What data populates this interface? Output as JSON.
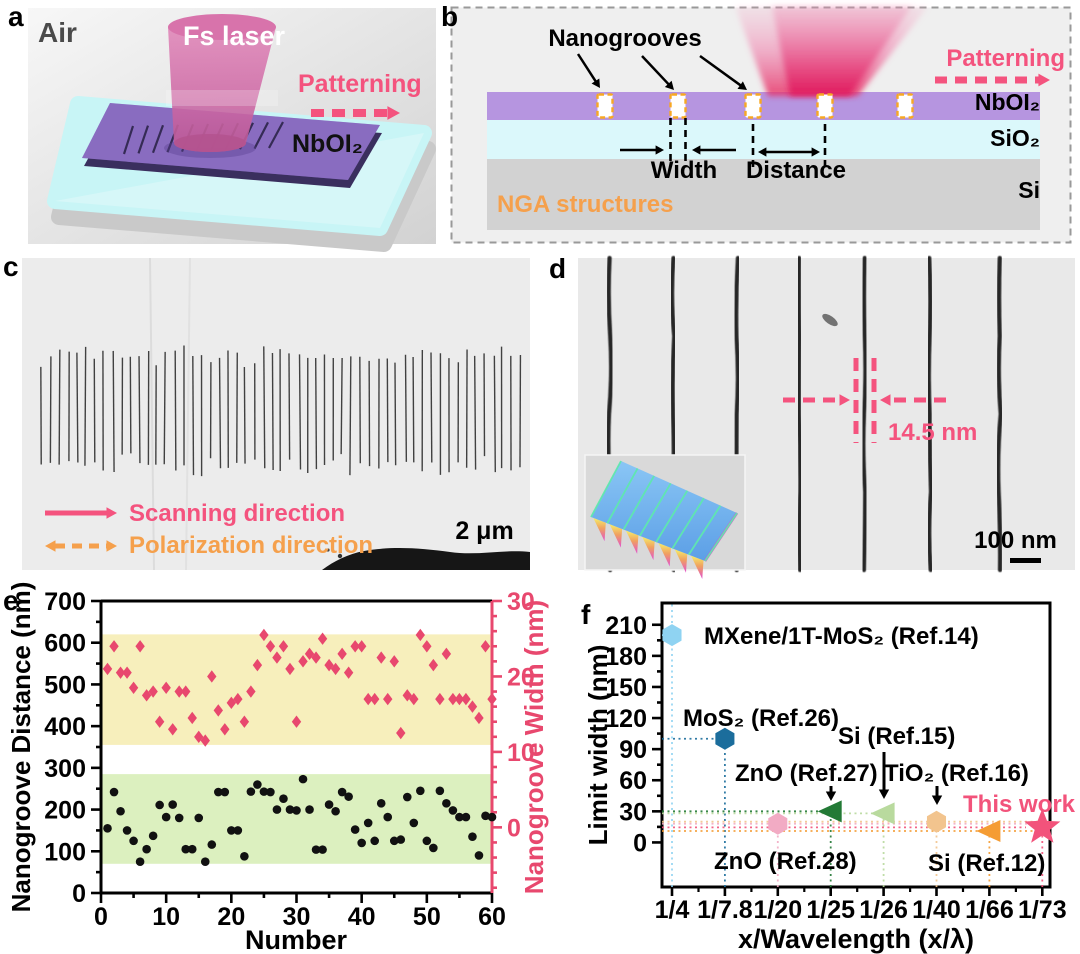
{
  "letters": {
    "a": "a",
    "b": "b",
    "c": "c",
    "d": "d",
    "e": "e",
    "f": "f"
  },
  "colors": {
    "accent_pink": "#f4537e",
    "accent_orange": "#f5a04c",
    "nboi2_purple": "#b695e0",
    "sio2_cyan": "#dbf8fb",
    "si_gray": "#d2d2d2",
    "band_yellow": "#f7efbc",
    "band_green": "#dcf0bf",
    "width_pink": "#e8486e",
    "groove_outline_orange": "#f7a823",
    "beam_pink": "#e62e63"
  },
  "panel_a": {
    "air": "Air",
    "laser_label": "Fs laser",
    "patterning": "Patterning",
    "material": "NbOI₂"
  },
  "panel_b": {
    "nanogrooves": "Nanogrooves",
    "width": "Width",
    "distance": "Distance",
    "patterning": "Patterning",
    "layer_top": "NbOI₂",
    "layer_mid": "SiO₂",
    "layer_bottom": "Si",
    "annotation": "NGA structures",
    "groove_count": 5
  },
  "panel_c": {
    "scanning": "Scanning direction",
    "polarization": "Polarization direction",
    "scalebar": "2 μm",
    "groove_count": 55
  },
  "panel_d": {
    "measurement": "14.5 nm",
    "scalebar": "100 nm",
    "groove_count": 7
  },
  "chart_data": [
    {
      "type": "scatter",
      "panel": "e",
      "xlabel": "Number",
      "ylabel_left": "Nanogroove Distance (nm)",
      "ylabel_right": "Nanogroove Width (nm)",
      "xlim": [
        0,
        60
      ],
      "ylim_left": [
        0,
        700
      ],
      "ylim_right": [
        -8.7,
        30
      ],
      "x_ticks": [
        0,
        10,
        20,
        30,
        40,
        50,
        60
      ],
      "y_ticks_left": [
        0,
        100,
        200,
        300,
        400,
        500,
        600,
        700
      ],
      "y_ticks_right": [
        0,
        10,
        20,
        30
      ],
      "grid": false,
      "legend": "none",
      "bands": [
        {
          "axis": "left",
          "from": 355,
          "to": 620,
          "color": "#f7efbc"
        },
        {
          "axis": "left",
          "from": 70,
          "to": 285,
          "color": "#dcf0bf"
        }
      ],
      "series": [
        {
          "name": "Nanogroove Distance",
          "axis": "left",
          "marker": "circle",
          "color": "#111111",
          "x_rule": "n = 1..60",
          "y": [
            155,
            242,
            196,
            150,
            125,
            75,
            105,
            137,
            211,
            182,
            212,
            180,
            105,
            105,
            180,
            75,
            116,
            242,
            242,
            150,
            150,
            88,
            243,
            260,
            243,
            242,
            200,
            226,
            200,
            198,
            273,
            200,
            104,
            104,
            212,
            196,
            242,
            231,
            152,
            120,
            168,
            125,
            215,
            182,
            125,
            128,
            230,
            168,
            245,
            125,
            108,
            245,
            215,
            198,
            182,
            182,
            135,
            90,
            185,
            182
          ]
        },
        {
          "name": "Nanogroove Width",
          "axis": "right",
          "marker": "diamond",
          "color": "#e8486e",
          "x_rule": "n = 1..60",
          "y": [
            21,
            24,
            20.5,
            20.5,
            18.5,
            24,
            17.5,
            18,
            14,
            18.5,
            13,
            18,
            18,
            14.5,
            12,
            11.5,
            20,
            15.5,
            13,
            16.5,
            17,
            14,
            18,
            21.5,
            25.5,
            24,
            22.5,
            24,
            21,
            14,
            22,
            23,
            22.5,
            25,
            21.5,
            21,
            23,
            20.5,
            24,
            24,
            17,
            17,
            22.5,
            17,
            22,
            12.5,
            17.5,
            17,
            25.5,
            24,
            21.5,
            17,
            23,
            17,
            17,
            17,
            16,
            14.5,
            24,
            17
          ]
        }
      ]
    },
    {
      "type": "scatter",
      "panel": "f",
      "xlabel": "x/Wavelength (x/λ)",
      "ylabel": "Limit width (nm)",
      "categories": [
        "1/4",
        "1/7.8",
        "1/20",
        "1/25",
        "1/26",
        "1/40",
        "1/66",
        "1/73"
      ],
      "y_ticks": [
        0,
        30,
        60,
        90,
        120,
        150,
        180,
        210
      ],
      "ylim": [
        -43,
        231
      ],
      "points": [
        {
          "label": "MXene/1T-MoS₂  (Ref.14)",
          "category": "1/4",
          "value": 200,
          "marker": "hexagon",
          "color": "#8fd3f2"
        },
        {
          "label": "MoS₂ (Ref.26)",
          "category": "1/7.8",
          "value": 100,
          "marker": "hexagon",
          "color": "#1b6d9c"
        },
        {
          "label": "ZnO (Ref.28)",
          "category": "1/20",
          "value": 18,
          "marker": "hexagon",
          "color": "#f2abc4"
        },
        {
          "label": "ZnO (Ref.27)",
          "category": "1/25",
          "value": 30,
          "marker": "triangle-left",
          "color": "#237a36"
        },
        {
          "label": "Si (Ref.15)",
          "category": "1/26",
          "value": 28,
          "marker": "triangle-left",
          "color": "#b9da9e"
        },
        {
          "label": "TiO₂ (Ref.16)",
          "category": "1/40",
          "value": 20,
          "marker": "hexagon",
          "color": "#f2c48e"
        },
        {
          "label": "Si (Ref.12)",
          "category": "1/66",
          "value": 11,
          "marker": "triangle-left",
          "color": "#f59c33"
        },
        {
          "label": "This work",
          "category": "1/73",
          "value": 14.5,
          "marker": "star",
          "color": "#f2537b",
          "label_color": "#f2537b"
        }
      ]
    }
  ]
}
